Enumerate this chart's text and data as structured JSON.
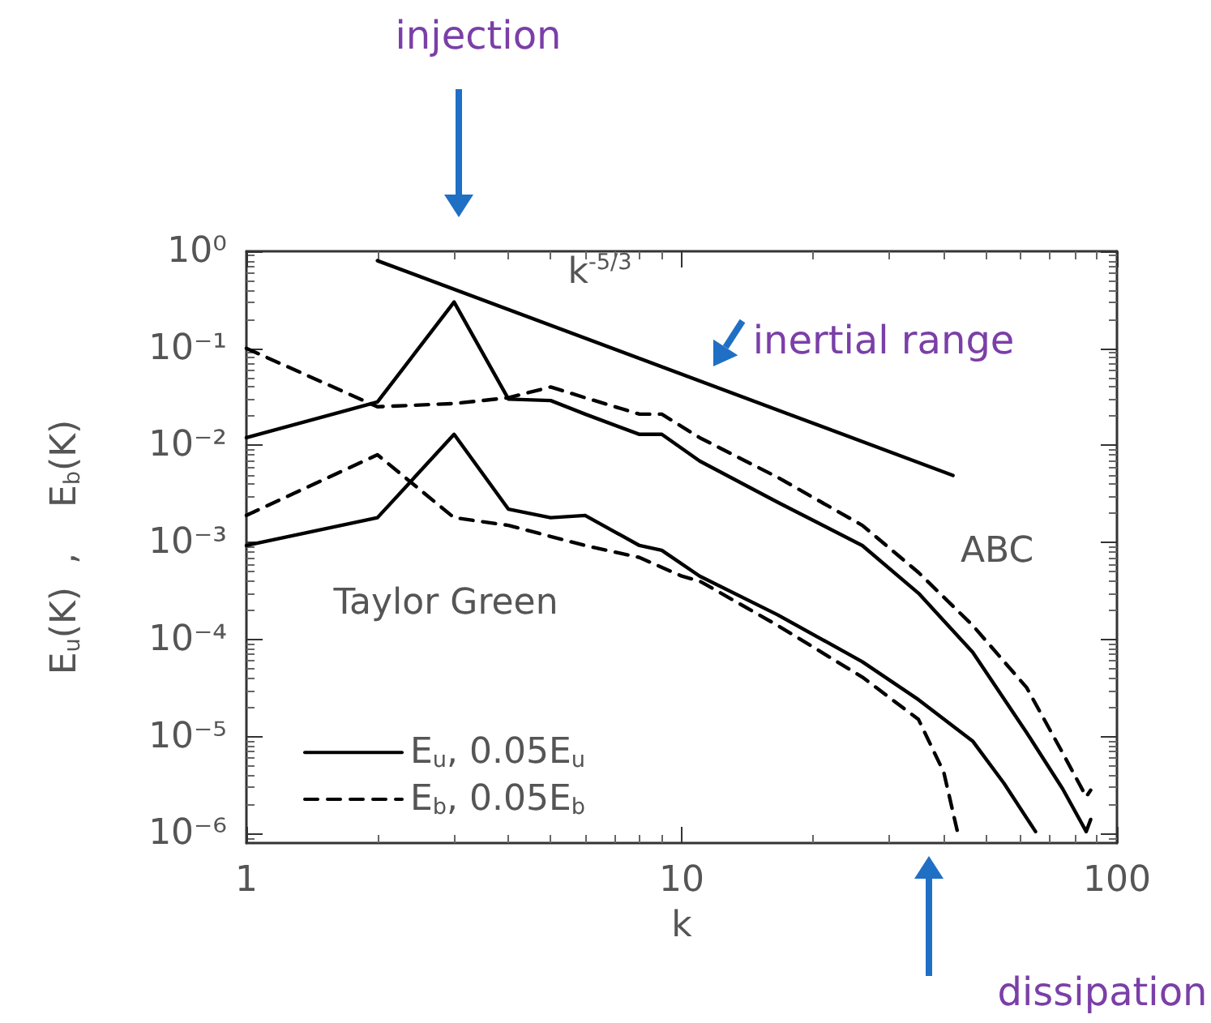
{
  "chart_data": {
    "type": "line",
    "xlabel": "k",
    "ylabel": "E$_{u}$(K)  ,    E$_{b}$(K)",
    "log": "xy",
    "xlim": [
      1,
      100
    ],
    "ylim": [
      8e-07,
      1
    ],
    "xticks": [
      1,
      10,
      100
    ],
    "yticks": [
      {
        "value": 1e-06,
        "label": "10⁻⁶"
      },
      {
        "value": 1e-05,
        "label": "10⁻⁵"
      },
      {
        "value": 0.0001,
        "label": "10⁻⁴"
      },
      {
        "value": 0.001,
        "label": "10⁻³"
      },
      {
        "value": 0.01,
        "label": "10⁻²"
      },
      {
        "value": 0.1,
        "label": "10⁻¹"
      },
      {
        "value": 1,
        "label": "10⁰"
      }
    ],
    "grid": false,
    "legend": "bottom left",
    "marker": "none",
    "series": [
      {
        "name": "E$_{u}$, 0.05E$_{u}$",
        "color": "#000000",
        "line_style": "solid",
        "x": [
          1,
          2,
          3,
          4,
          5,
          6,
          8,
          9,
          11,
          16.6,
          26,
          35,
          46.6,
          62,
          75,
          85,
          87
        ],
        "values": [
          0.012,
          0.028,
          0.3,
          0.03,
          0.029,
          0.021,
          0.013,
          0.013,
          0.0069,
          0.0026,
          0.00093,
          0.0003,
          7.4e-05,
          1.1e-05,
          2.9e-06,
          1.05e-06,
          1.4e-06
        ]
      },
      {
        "name": "E$_{b}$, 0.05E$_{b}$",
        "color": "#000000",
        "line_style": "dashed",
        "x": [
          1,
          2,
          3,
          4,
          5,
          6,
          8,
          9,
          11,
          16.6,
          26,
          35,
          46.6,
          62,
          75,
          85,
          87
        ],
        "values": [
          0.1,
          0.025,
          0.027,
          0.031,
          0.04,
          0.031,
          0.021,
          0.021,
          0.012,
          0.0047,
          0.0015,
          0.00049,
          0.00014,
          3.2e-05,
          6.8e-06,
          2.4e-06,
          2.8e-06
        ]
      },
      {
        "color": "#000000",
        "line_style": "solid",
        "x": [
          1,
          2,
          3,
          4,
          5,
          6,
          8,
          9,
          11,
          16.6,
          26,
          35,
          46.6,
          55,
          65
        ],
        "values": [
          0.00093,
          0.0018,
          0.013,
          0.0022,
          0.0018,
          0.0019,
          0.00093,
          0.00083,
          0.00045,
          0.00018,
          5.9e-05,
          2.4e-05,
          9e-06,
          3.3e-06,
          1.05e-06
        ]
      },
      {
        "color": "#000000",
        "line_style": "dashed",
        "x": [
          1,
          2,
          3,
          4,
          6,
          8,
          10,
          11,
          16.6,
          26,
          35,
          40,
          43
        ],
        "values": [
          0.0019,
          0.008,
          0.0018,
          0.0015,
          0.00093,
          0.0007,
          0.00045,
          0.0004,
          0.00014,
          4.1e-05,
          1.5e-05,
          4.3e-06,
          1.05e-06
        ]
      },
      {
        "color": "#000000",
        "line_style": "solid",
        "x": [
          2,
          42
        ],
        "values": [
          0.8,
          0.0049
        ]
      }
    ],
    "annotations": [
      "k$^{-5/3}$",
      "ABC",
      "Taylor Green",
      "inertial range",
      "injection",
      "dissipation"
    ]
  }
}
